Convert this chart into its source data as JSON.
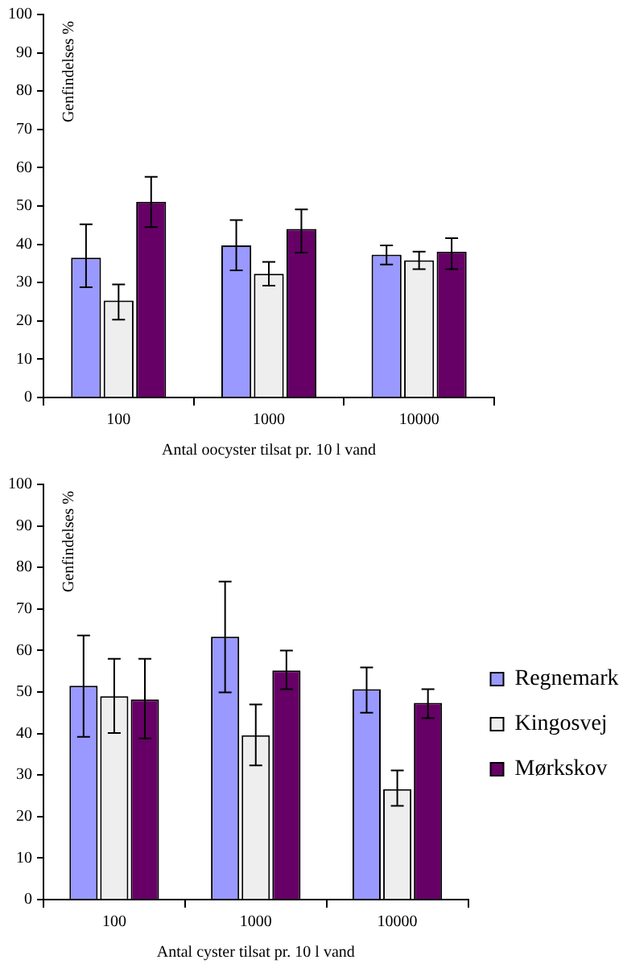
{
  "chart_data": [
    {
      "type": "bar",
      "ylabel": "Genfindelses %",
      "xlabel": "Antal oocyster tilsat pr. 10 l vand",
      "categories": [
        "100",
        "1000",
        "10000"
      ],
      "ylim": [
        0,
        100
      ],
      "yticks": [
        0,
        10,
        20,
        30,
        40,
        50,
        60,
        70,
        80,
        90,
        100
      ],
      "grid": false,
      "legend": false,
      "series": [
        {
          "color": "#9999ff",
          "values": [
            36.5,
            39.7,
            37.3
          ],
          "errors": [
            [
              28.8,
              45.2
            ],
            [
              33.2,
              46.3
            ],
            [
              34.7,
              39.7
            ]
          ]
        },
        {
          "color": "#eeeeee",
          "values": [
            25.3,
            32.3,
            35.8
          ],
          "errors": [
            [
              20.3,
              29.5
            ],
            [
              29.2,
              35.4
            ],
            [
              33.5,
              38.1
            ]
          ]
        },
        {
          "color": "#660066",
          "values": [
            51.1,
            44.0,
            38.1
          ],
          "errors": [
            [
              44.5,
              57.6
            ],
            [
              37.8,
              49.1
            ],
            [
              33.5,
              41.6
            ]
          ]
        }
      ]
    },
    {
      "type": "bar",
      "ylabel": "Genfindelses %",
      "xlabel": "Antal cyster tilsat pr. 10 l vand",
      "categories": [
        "100",
        "1000",
        "10000"
      ],
      "ylim": [
        0,
        100
      ],
      "yticks": [
        0,
        10,
        20,
        30,
        40,
        50,
        60,
        70,
        80,
        90,
        100
      ],
      "grid": false,
      "legend": "right",
      "series": [
        {
          "name": "Regnemark",
          "color": "#9999ff",
          "values": [
            51.5,
            63.3,
            50.7
          ],
          "errors": [
            [
              39.2,
              63.6
            ],
            [
              49.9,
              76.6
            ],
            [
              45.0,
              55.9
            ]
          ]
        },
        {
          "name": "Kingosvej",
          "color": "#eeeeee",
          "values": [
            49.0,
            39.6,
            26.6
          ],
          "errors": [
            [
              40.1,
              58.0
            ],
            [
              32.3,
              47.0
            ],
            [
              22.6,
              31.1
            ]
          ]
        },
        {
          "name": "Mørkskov",
          "color": "#660066",
          "values": [
            48.2,
            55.2,
            47.4
          ],
          "errors": [
            [
              38.8,
              58.0
            ],
            [
              50.7,
              60.0
            ],
            [
              43.7,
              50.7
            ]
          ]
        }
      ]
    }
  ]
}
